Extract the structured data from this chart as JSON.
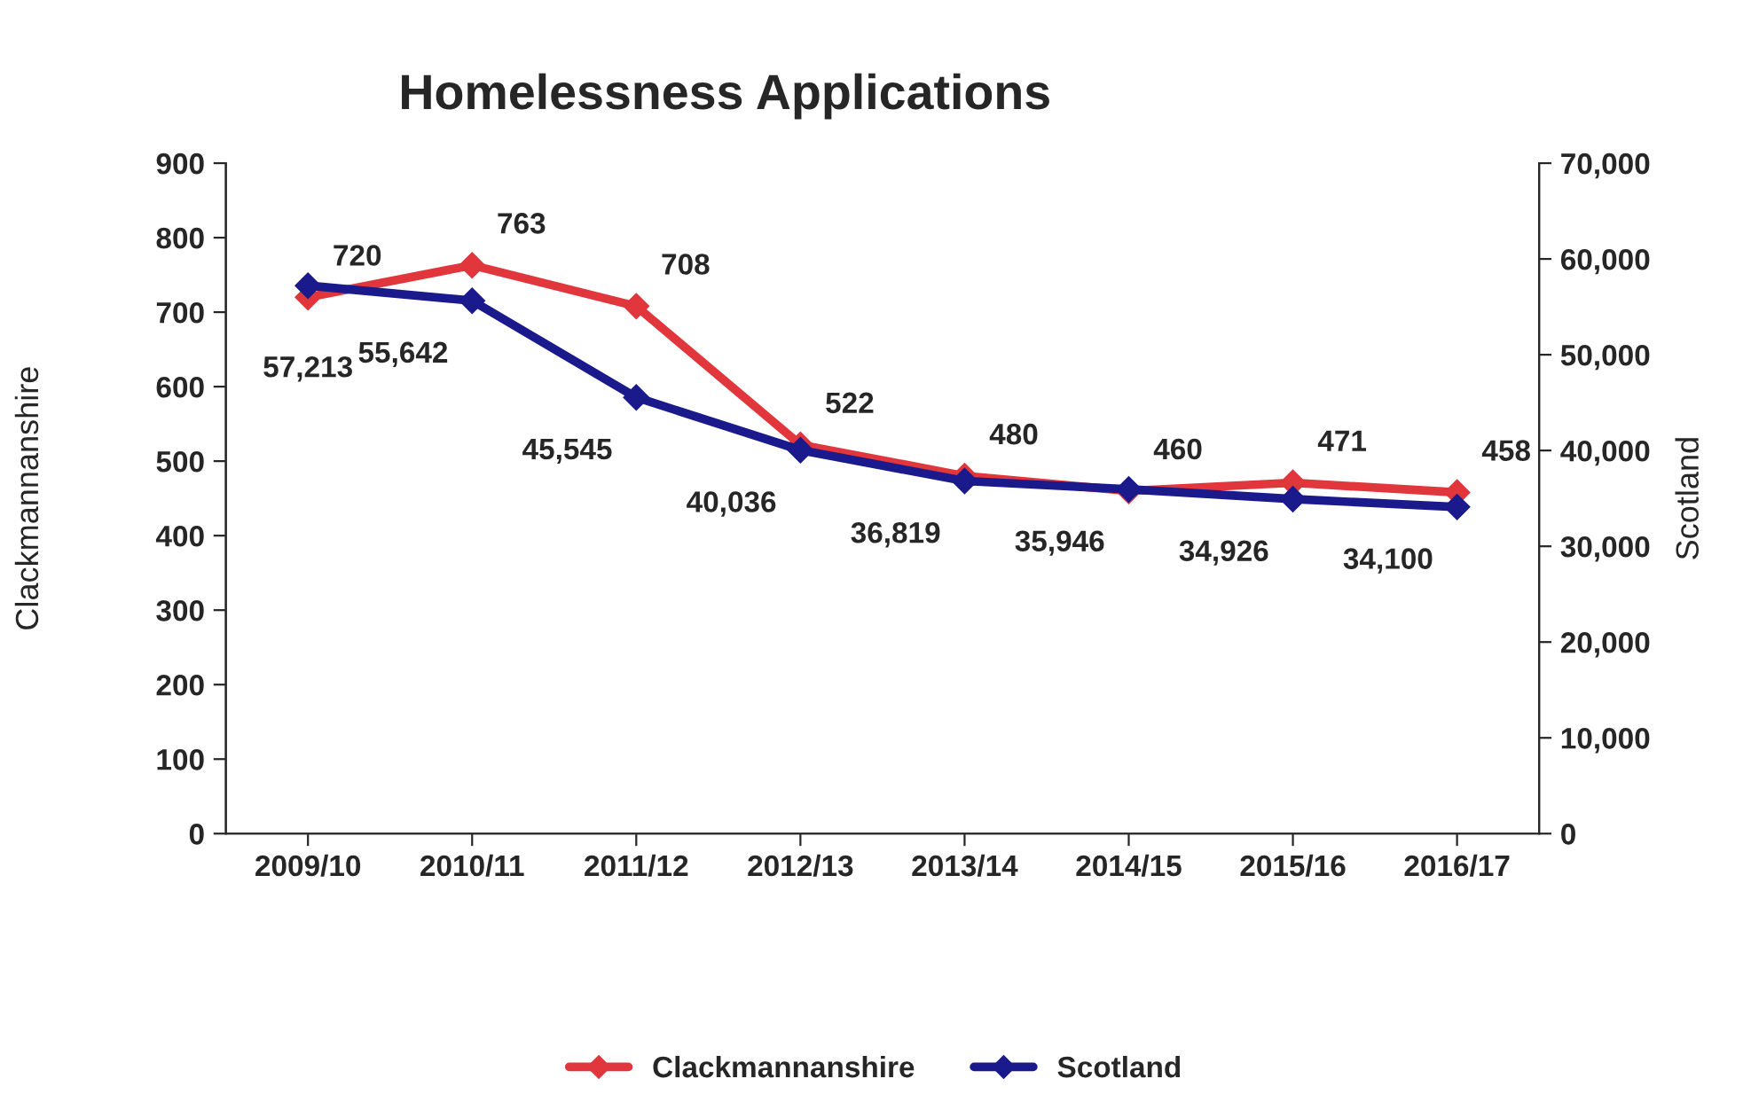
{
  "chart_data": {
    "type": "line",
    "title": "Homelessness Applications",
    "ylabel": "Clackmannanshire",
    "y2label": "Scotland",
    "categories": [
      "2009/10",
      "2010/11",
      "2011/12",
      "2012/13",
      "2013/14",
      "2014/15",
      "2015/16",
      "2016/17"
    ],
    "series": [
      {
        "name": "Clackmannanshire",
        "color": "#e0363c",
        "values": [
          720,
          763,
          708,
          522,
          480,
          460,
          471,
          458
        ],
        "value_labels": [
          "720",
          "763",
          "708",
          "522",
          "480",
          "460",
          "471",
          "458"
        ]
      },
      {
        "name": "Scotland",
        "color": "#1a1a8c",
        "axis": "y2",
        "values": [
          57213,
          55642,
          45545,
          40036,
          36819,
          35946,
          34926,
          34100
        ],
        "value_labels": [
          "57,213",
          "55,642",
          "45,545",
          "40,036",
          "36,819",
          "35,946",
          "34,926",
          "34,100"
        ]
      }
    ],
    "ylim": [
      0,
      900
    ],
    "yticks": [
      0,
      100,
      200,
      300,
      400,
      500,
      600,
      700,
      800,
      900
    ],
    "y2lim": [
      0,
      70000
    ],
    "y2ticks": [
      0,
      {
        "value": 10000,
        "label": "10,000"
      },
      {
        "value": 20000,
        "label": "20,000"
      },
      {
        "value": 30000,
        "label": "30,000"
      },
      {
        "value": 40000,
        "label": "40,000"
      },
      {
        "value": 50000,
        "label": "50,000"
      },
      {
        "value": 60000,
        "label": "60,000"
      },
      {
        "value": 70000,
        "label": "70,000"
      }
    ],
    "marker": "diamond",
    "line_style": "solid",
    "legend": "bottom",
    "grid": false
  }
}
